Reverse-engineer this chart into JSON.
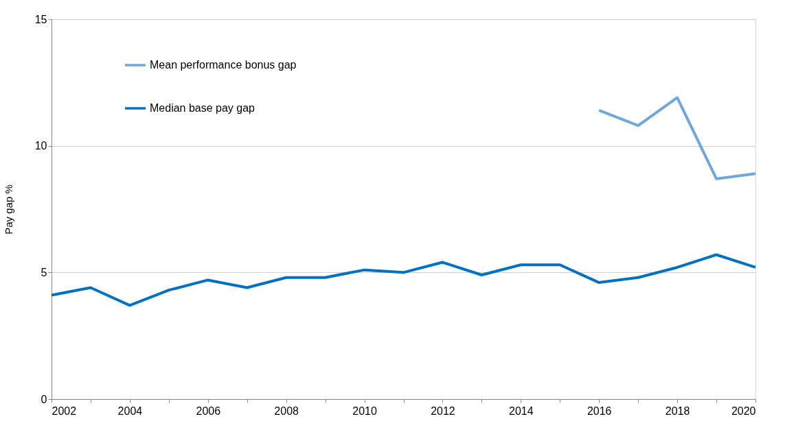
{
  "chart_data": {
    "type": "line",
    "ylabel": "Pay gap %",
    "xlim": [
      2002,
      2020
    ],
    "xticks": [
      2002,
      {
        "value": 2003,
        "label": null
      },
      2004,
      {
        "value": 2005,
        "label": null
      },
      2006,
      {
        "value": 2007,
        "label": null
      },
      2008,
      {
        "value": 2009,
        "label": null
      },
      2010,
      {
        "value": 2011,
        "label": null
      },
      2012,
      {
        "value": 2013,
        "label": null
      },
      2014,
      {
        "value": 2015,
        "label": null
      },
      2016,
      {
        "value": 2017,
        "label": null
      },
      2018,
      {
        "value": 2019,
        "label": null
      },
      2020
    ],
    "ylim": [
      0,
      15
    ],
    "yticks": [
      0,
      5,
      10,
      15
    ],
    "grid": "y",
    "legend": "top left",
    "line_style": "solid",
    "marker": "none",
    "series": [
      {
        "name": "Mean performance bonus gap",
        "color": "#6fa6dc",
        "x": [
          2016,
          2017,
          2018,
          2019,
          2020
        ],
        "values": [
          11.4,
          10.8,
          11.9,
          8.7,
          8.9
        ]
      },
      {
        "name": "Median base pay gap",
        "color": "#0070c0",
        "x": [
          2002,
          2003,
          2004,
          2005,
          2006,
          2007,
          2008,
          2009,
          2010,
          2011,
          2012,
          2013,
          2014,
          2015,
          2016,
          2017,
          2018,
          2019,
          2020
        ],
        "values": [
          4.1,
          4.4,
          3.7,
          4.3,
          4.7,
          4.4,
          4.8,
          4.8,
          5.1,
          5.0,
          5.4,
          4.9,
          5.3,
          5.3,
          4.6,
          4.8,
          5.2,
          5.7,
          5.2
        ]
      }
    ]
  }
}
